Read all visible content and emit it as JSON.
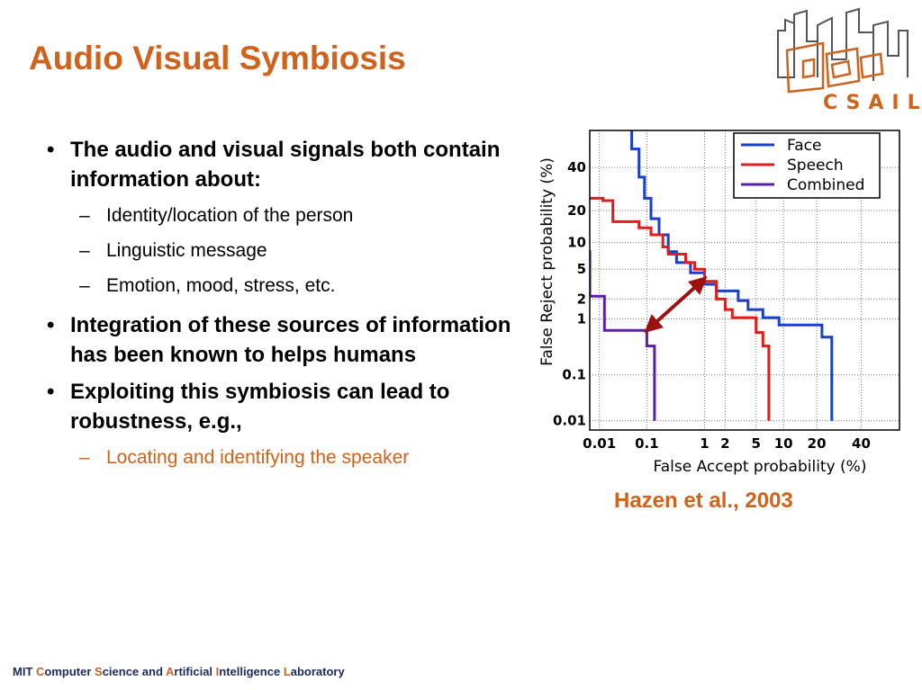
{
  "slide": {
    "title": "Audio Visual Symbiosis",
    "logo_text": "CSAIL",
    "citation": "Hazen et al., 2003"
  },
  "bullets": [
    {
      "text": "The audio and visual signals both contain information about:",
      "subs": [
        "Identity/location of the person",
        "Linguistic message",
        "Emotion, mood, stress, etc."
      ]
    },
    {
      "text": "Integration of these sources of information has been known to helps humans",
      "subs": []
    },
    {
      "text": "Exploiting this symbiosis can lead to robustness, e.g.,",
      "subs": [
        "Locating and identifying the speaker"
      ]
    }
  ],
  "footer": {
    "parts": [
      {
        "text": "MIT ",
        "hl": false
      },
      {
        "text": "C",
        "hl": true
      },
      {
        "text": "omputer ",
        "hl": false
      },
      {
        "text": "S",
        "hl": true
      },
      {
        "text": "cience and ",
        "hl": false
      },
      {
        "text": "A",
        "hl": true
      },
      {
        "text": "rtificial ",
        "hl": false
      },
      {
        "text": "I",
        "hl": true
      },
      {
        "text": "ntelligence ",
        "hl": false
      },
      {
        "text": "L",
        "hl": true
      },
      {
        "text": "aboratory",
        "hl": false
      }
    ]
  },
  "colors": {
    "accent": "#d0621c",
    "face": "#1a3fc9",
    "speech": "#e01c1c",
    "combined": "#5b1fa8",
    "arrow": "#9e1111"
  },
  "chart_data": {
    "type": "line",
    "title": "",
    "xlabel": "False Accept probability (%)",
    "ylabel": "False Reject probability (%)",
    "scale": "normal-deviate (DET)",
    "grid": true,
    "legend_position": "top-right",
    "x_ticks": [
      0.01,
      0.1,
      1,
      2,
      5,
      10,
      20,
      40
    ],
    "x_tick_labels": [
      "0.01",
      "0.1",
      "1",
      "2",
      "5",
      "10",
      "20",
      "40"
    ],
    "y_ticks": [
      0.01,
      0.1,
      1,
      2,
      5,
      10,
      20,
      40
    ],
    "y_tick_labels": [
      "0.01",
      "0.1",
      "1",
      "2",
      "5",
      "10",
      "20",
      "40"
    ],
    "series": [
      {
        "name": "Face",
        "points": [
          [
            0.05,
            60
          ],
          [
            0.05,
            50
          ],
          [
            0.07,
            50
          ],
          [
            0.07,
            35
          ],
          [
            0.09,
            35
          ],
          [
            0.09,
            25
          ],
          [
            0.12,
            25
          ],
          [
            0.12,
            17
          ],
          [
            0.17,
            17
          ],
          [
            0.17,
            12
          ],
          [
            0.25,
            12
          ],
          [
            0.25,
            8
          ],
          [
            0.35,
            8
          ],
          [
            0.35,
            6
          ],
          [
            0.6,
            6
          ],
          [
            0.6,
            4.5
          ],
          [
            1,
            4.5
          ],
          [
            1,
            3.2
          ],
          [
            1.5,
            3.2
          ],
          [
            1.5,
            2.6
          ],
          [
            3,
            2.6
          ],
          [
            3,
            1.9
          ],
          [
            4,
            1.9
          ],
          [
            4,
            1.4
          ],
          [
            6,
            1.4
          ],
          [
            6,
            1.05
          ],
          [
            9,
            1.05
          ],
          [
            9,
            0.8
          ],
          [
            22,
            0.8
          ],
          [
            22,
            0.5
          ],
          [
            26,
            0.5
          ],
          [
            26,
            0.01
          ]
        ]
      },
      {
        "name": "Speech",
        "points": [
          [
            0.0005,
            25
          ],
          [
            0.012,
            25
          ],
          [
            0.012,
            24
          ],
          [
            0.02,
            24
          ],
          [
            0.02,
            16
          ],
          [
            0.07,
            16
          ],
          [
            0.07,
            14
          ],
          [
            0.12,
            14
          ],
          [
            0.12,
            12
          ],
          [
            0.2,
            12
          ],
          [
            0.2,
            9
          ],
          [
            0.25,
            9
          ],
          [
            0.25,
            7.5
          ],
          [
            0.5,
            7.5
          ],
          [
            0.5,
            6
          ],
          [
            0.7,
            6
          ],
          [
            0.7,
            5
          ],
          [
            1,
            5
          ],
          [
            1,
            3.5
          ],
          [
            1.5,
            3.5
          ],
          [
            1.5,
            2
          ],
          [
            2,
            2
          ],
          [
            2,
            1.4
          ],
          [
            2.5,
            1.4
          ],
          [
            2.5,
            1.05
          ],
          [
            5,
            1.05
          ],
          [
            5,
            0.6
          ],
          [
            6,
            0.6
          ],
          [
            6,
            0.35
          ],
          [
            7,
            0.35
          ],
          [
            7,
            0.01
          ]
        ]
      },
      {
        "name": "Combined",
        "points": [
          [
            0.0005,
            8
          ],
          [
            0.006,
            8
          ],
          [
            0.006,
            2.2
          ],
          [
            0.013,
            2.2
          ],
          [
            0.013,
            0.65
          ],
          [
            0.1,
            0.65
          ],
          [
            0.1,
            0.35
          ],
          [
            0.14,
            0.35
          ],
          [
            0.14,
            0.01
          ]
        ]
      }
    ],
    "annotation": {
      "type": "double-arrow",
      "from": [
        0.1,
        0.65
      ],
      "to": [
        1,
        3.8
      ]
    }
  }
}
